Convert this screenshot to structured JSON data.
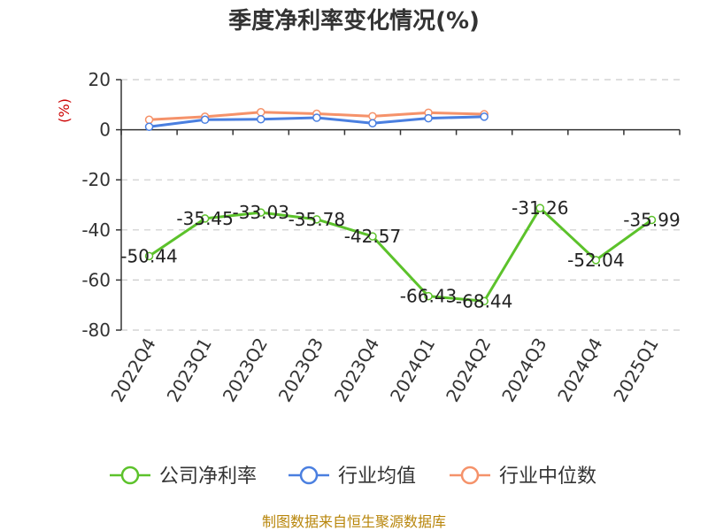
{
  "chart_data": {
    "type": "line",
    "title": "季度净利率变化情况(%)",
    "ylabel": "(%)",
    "xlabel": "",
    "ylim": [
      -80,
      20
    ],
    "yticks": [
      20,
      0,
      -20,
      -40,
      -60,
      -80
    ],
    "grid": true,
    "legend_position": "bottom",
    "categories": [
      "2022Q4",
      "2023Q1",
      "2023Q2",
      "2023Q3",
      "2023Q4",
      "2024Q1",
      "2024Q2",
      "2024Q3",
      "2024Q4",
      "2025Q1"
    ],
    "series": [
      {
        "name": "公司净利率",
        "color": "#5cc22b",
        "values": [
          -50.44,
          -35.45,
          -33.03,
          -35.78,
          -42.57,
          -66.43,
          -68.44,
          -31.26,
          -52.04,
          -35.99
        ],
        "labels": [
          "-50.44",
          "-35.45",
          "-33.03",
          "-35.78",
          "-42.57",
          "-66.43",
          "-68.44",
          "-31.26",
          "-52.04",
          "-35.99"
        ]
      },
      {
        "name": "行业均值",
        "color": "#4a7fe0",
        "values": [
          1.2,
          4.0,
          4.2,
          4.8,
          2.6,
          4.6,
          5.2,
          null,
          null,
          null
        ]
      },
      {
        "name": "行业中位数",
        "color": "#f5926a",
        "values": [
          4.0,
          5.2,
          7.0,
          6.4,
          5.4,
          6.8,
          6.2,
          null,
          null,
          null
        ]
      }
    ]
  },
  "source": "制图数据来自恒生聚源数据库"
}
